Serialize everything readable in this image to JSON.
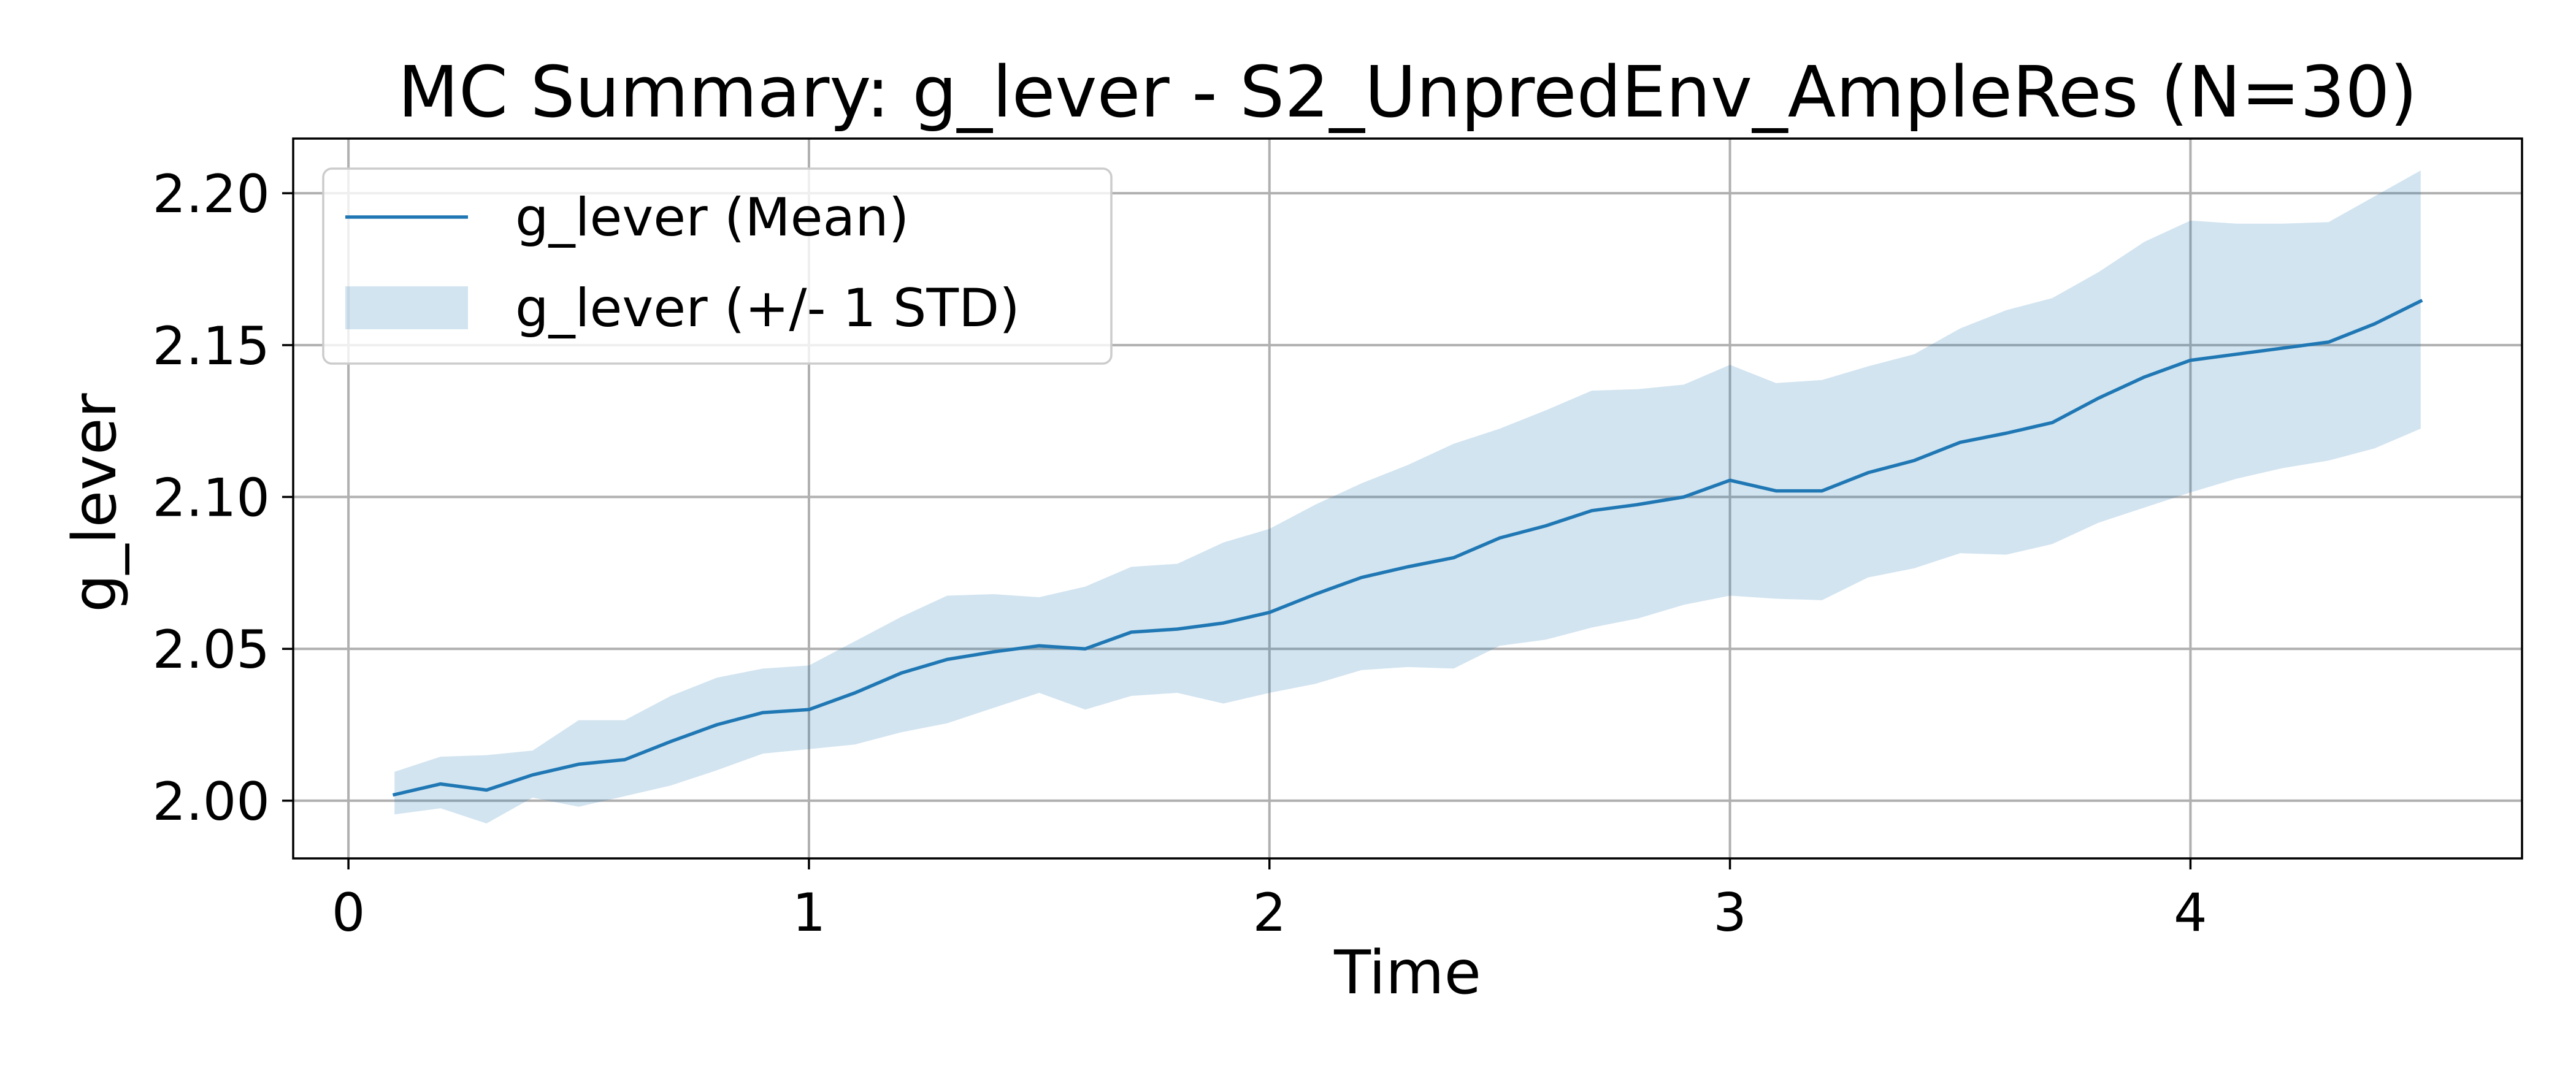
{
  "chart_data": {
    "type": "line",
    "title": "MC Summary: g_lever - S2_UnpredEnv_AmpleRes (N=30)",
    "xlabel": "Time",
    "ylabel": "g_lever",
    "xlim": [
      -0.12,
      4.72
    ],
    "ylim": [
      1.981,
      2.218
    ],
    "xticks": [
      0,
      1,
      2,
      3,
      4
    ],
    "xtick_labels": [
      "0",
      "1",
      "2",
      "3",
      "4"
    ],
    "yticks": [
      2.0,
      2.05,
      2.1,
      2.15,
      2.2
    ],
    "ytick_labels": [
      "2.00",
      "2.05",
      "2.10",
      "2.15",
      "2.20"
    ],
    "grid": true,
    "legend_position": "top-left",
    "x": [
      0.1,
      0.2,
      0.3,
      0.4,
      0.5,
      0.6,
      0.7,
      0.8,
      0.9,
      1.0,
      1.1,
      1.2,
      1.3,
      1.4,
      1.5,
      1.6,
      1.7,
      1.8,
      1.9,
      2.0,
      2.1,
      2.2,
      2.3,
      2.4,
      2.5,
      2.6,
      2.7,
      2.8,
      2.9,
      3.0,
      3.1,
      3.2,
      3.3,
      3.4,
      3.5,
      3.6,
      3.7,
      3.8,
      3.9,
      4.0,
      4.1,
      4.2,
      4.3,
      4.4,
      4.5
    ],
    "series": [
      {
        "name": "g_lever (Mean)",
        "kind": "line",
        "color": "#1f77b4",
        "values": [
          2.002,
          2.0055,
          2.0035,
          2.0085,
          2.012,
          2.0135,
          2.0195,
          2.025,
          2.029,
          2.03,
          2.0355,
          2.042,
          2.0465,
          2.049,
          2.051,
          2.05,
          2.0555,
          2.0565,
          2.0585,
          2.062,
          2.068,
          2.0735,
          2.077,
          2.08,
          2.0865,
          2.0905,
          2.0955,
          2.0975,
          2.1,
          2.1055,
          2.102,
          2.102,
          2.108,
          2.112,
          2.118,
          2.121,
          2.1245,
          2.1325,
          2.1395,
          2.145,
          2.147,
          2.149,
          2.151,
          2.157,
          2.1645
        ]
      },
      {
        "name": "g_lever (+/- 1 STD)",
        "kind": "band",
        "color": "#1f77b4",
        "opacity": 0.2,
        "upper": [
          2.0095,
          2.0145,
          2.015,
          2.0165,
          2.0265,
          2.0265,
          2.0345,
          2.0405,
          2.0435,
          2.0445,
          2.0525,
          2.0605,
          2.0675,
          2.068,
          2.067,
          2.0705,
          2.077,
          2.078,
          2.085,
          2.0895,
          2.0975,
          2.1045,
          2.1105,
          2.1175,
          2.1225,
          2.1285,
          2.135,
          2.1355,
          2.137,
          2.1435,
          2.1375,
          2.1385,
          2.143,
          2.147,
          2.1555,
          2.1615,
          2.1655,
          2.174,
          2.184,
          2.191,
          2.19,
          2.19,
          2.1905,
          2.199,
          2.2075
        ],
        "lower": [
          1.9955,
          1.9975,
          1.9925,
          2.001,
          1.998,
          2.0015,
          2.005,
          2.01,
          2.0155,
          2.017,
          2.0185,
          2.0225,
          2.0255,
          2.0305,
          2.0355,
          2.03,
          2.0345,
          2.0355,
          2.032,
          2.0355,
          2.0385,
          2.043,
          2.044,
          2.0435,
          2.051,
          2.053,
          2.057,
          2.06,
          2.0645,
          2.0675,
          2.0665,
          2.066,
          2.0735,
          2.0765,
          2.0815,
          2.081,
          2.0845,
          2.0915,
          2.0965,
          2.1015,
          2.106,
          2.1095,
          2.112,
          2.116,
          2.1225
        ]
      }
    ]
  }
}
